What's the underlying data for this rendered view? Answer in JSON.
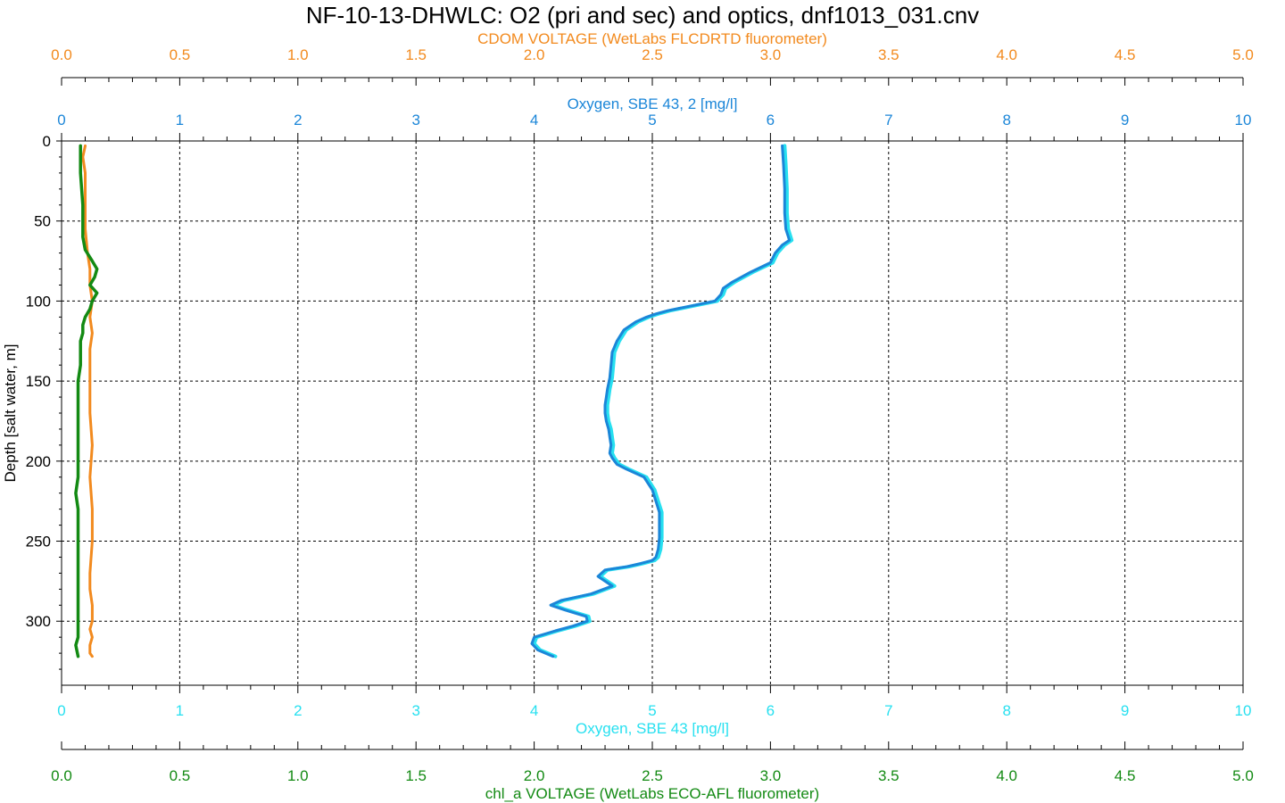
{
  "chart_data": {
    "type": "line",
    "title": "NF-10-13-DHWLC: O2 (pri and sec) and optics, dnf1013_031.cnv",
    "ylabel": "Depth [salt water, m]",
    "ylim": [
      0,
      340
    ],
    "yticks": [
      "0",
      "50",
      "100",
      "150",
      "200",
      "250",
      "300"
    ],
    "grid": true,
    "colors": {
      "cdom": "#f28a1e",
      "oxygen2": "#1b86d8",
      "oxygen1": "#27e0f0",
      "chl": "#138a13",
      "grid": "#000000"
    },
    "axes": {
      "top_outer": {
        "label": "CDOM VOLTAGE (WetLabs FLCDRTD fluorometer)",
        "range": [
          0,
          5
        ],
        "ticks": [
          "0.0",
          "0.5",
          "1.0",
          "1.5",
          "2.0",
          "2.5",
          "3.0",
          "3.5",
          "4.0",
          "4.5",
          "5.0"
        ]
      },
      "top_inner": {
        "label": "Oxygen, SBE 43, 2 [mg/l]",
        "range": [
          0,
          10
        ],
        "ticks": [
          "0",
          "1",
          "2",
          "3",
          "4",
          "5",
          "6",
          "7",
          "8",
          "9",
          "10"
        ]
      },
      "bottom_inner": {
        "label": "Oxygen, SBE 43 [mg/l]",
        "range": [
          0,
          10
        ],
        "ticks": [
          "0",
          "1",
          "2",
          "3",
          "4",
          "5",
          "6",
          "7",
          "8",
          "9",
          "10"
        ]
      },
      "bottom_outer": {
        "label": "chl_a VOLTAGE (WetLabs ECO-AFL fluorometer)",
        "range": [
          0,
          5
        ],
        "ticks": [
          "0.0",
          "0.5",
          "1.0",
          "1.5",
          "2.0",
          "2.5",
          "3.0",
          "3.5",
          "4.0",
          "4.5",
          "5.0"
        ]
      }
    },
    "series": [
      {
        "key": "oxygen1",
        "axis": "bottom_inner",
        "x": [
          6.12,
          6.13,
          6.14,
          6.14,
          6.15,
          6.18,
          6.12,
          6.06,
          6.02,
          5.85,
          5.7,
          5.62,
          5.6,
          5.55,
          5.35,
          5.15,
          5.05,
          4.97,
          4.88,
          4.78,
          4.72,
          4.68,
          4.67,
          4.66,
          4.64,
          4.63,
          4.62,
          4.62,
          4.63,
          4.65,
          4.66,
          4.67,
          4.66,
          4.68,
          4.72,
          4.8,
          4.95,
          5.02,
          5.05,
          5.08,
          5.08,
          5.08,
          5.07,
          5.05,
          5.02,
          4.92,
          4.8,
          4.62,
          4.56,
          4.68,
          4.5,
          4.25,
          4.16,
          4.28,
          4.46,
          4.47,
          4.35,
          4.2,
          4.02,
          4.0,
          4.05,
          4.18
        ],
        "y": [
          3,
          15,
          30,
          45,
          55,
          62,
          65,
          70,
          76,
          82,
          88,
          92,
          96,
          100,
          103,
          106,
          108,
          110,
          113,
          118,
          125,
          132,
          140,
          148,
          155,
          160,
          165,
          170,
          175,
          180,
          185,
          190,
          195,
          198,
          202,
          205,
          210,
          218,
          225,
          232,
          240,
          248,
          255,
          260,
          262,
          264,
          266,
          268,
          272,
          278,
          283,
          287,
          290,
          293,
          297,
          300,
          303,
          306,
          310,
          314,
          318,
          322
        ]
      },
      {
        "key": "oxygen2",
        "axis": "top_inner",
        "x": [
          6.1,
          6.11,
          6.12,
          6.12,
          6.13,
          6.16,
          6.1,
          6.04,
          6.0,
          5.83,
          5.68,
          5.6,
          5.58,
          5.53,
          5.33,
          5.13,
          5.03,
          4.95,
          4.86,
          4.76,
          4.7,
          4.66,
          4.65,
          4.64,
          4.62,
          4.61,
          4.6,
          4.6,
          4.61,
          4.63,
          4.64,
          4.65,
          4.64,
          4.66,
          4.7,
          4.78,
          4.93,
          5.0,
          5.03,
          5.06,
          5.06,
          5.06,
          5.05,
          5.03,
          5.0,
          4.9,
          4.78,
          4.6,
          4.54,
          4.66,
          4.48,
          4.23,
          4.14,
          4.26,
          4.44,
          4.45,
          4.33,
          4.18,
          4.0,
          3.98,
          4.03,
          4.16
        ],
        "y": [
          3,
          15,
          30,
          45,
          55,
          62,
          65,
          70,
          76,
          82,
          88,
          92,
          96,
          100,
          103,
          106,
          108,
          110,
          113,
          118,
          125,
          132,
          140,
          148,
          155,
          160,
          165,
          170,
          175,
          180,
          185,
          190,
          195,
          198,
          202,
          205,
          210,
          218,
          225,
          232,
          240,
          248,
          255,
          260,
          262,
          264,
          266,
          268,
          272,
          278,
          283,
          287,
          290,
          293,
          297,
          300,
          303,
          306,
          310,
          314,
          318,
          322
        ]
      },
      {
        "key": "cdom",
        "axis": "top_outer",
        "x": [
          0.1,
          0.09,
          0.1,
          0.1,
          0.1,
          0.1,
          0.11,
          0.12,
          0.12,
          0.13,
          0.12,
          0.13,
          0.12,
          0.12,
          0.12,
          0.13,
          0.12,
          0.13,
          0.13,
          0.12,
          0.12,
          0.13,
          0.13,
          0.12,
          0.13,
          0.12,
          0.12,
          0.12,
          0.13
        ],
        "y": [
          3,
          10,
          20,
          30,
          40,
          55,
          70,
          80,
          90,
          100,
          110,
          120,
          130,
          150,
          170,
          190,
          210,
          230,
          250,
          270,
          280,
          290,
          300,
          305,
          310,
          315,
          318,
          320,
          322
        ]
      },
      {
        "key": "chl",
        "axis": "bottom_outer",
        "x": [
          0.08,
          0.08,
          0.09,
          0.09,
          0.09,
          0.1,
          0.13,
          0.15,
          0.14,
          0.12,
          0.15,
          0.13,
          0.12,
          0.1,
          0.09,
          0.09,
          0.08,
          0.08,
          0.08,
          0.07,
          0.07,
          0.07,
          0.07,
          0.07,
          0.07,
          0.07,
          0.06,
          0.07,
          0.07,
          0.07,
          0.07,
          0.07,
          0.07,
          0.07,
          0.07,
          0.07,
          0.06,
          0.07
        ],
        "y": [
          3,
          20,
          40,
          55,
          60,
          68,
          75,
          80,
          85,
          90,
          95,
          100,
          105,
          110,
          115,
          120,
          125,
          130,
          140,
          150,
          160,
          170,
          180,
          190,
          200,
          210,
          220,
          230,
          240,
          250,
          260,
          270,
          280,
          290,
          300,
          310,
          315,
          322
        ]
      }
    ]
  }
}
